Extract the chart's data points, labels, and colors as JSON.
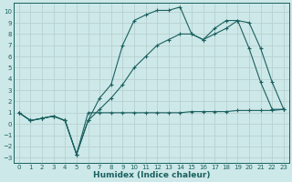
{
  "xlabel": "Humidex (Indice chaleur)",
  "bg_color": "#cde8e8",
  "grid_color": "#b8d0d0",
  "line_color": "#1a6060",
  "xlim": [
    -0.5,
    23.5
  ],
  "ylim": [
    -3.5,
    10.8
  ],
  "xticks": [
    0,
    1,
    2,
    3,
    4,
    5,
    6,
    7,
    8,
    9,
    10,
    11,
    12,
    13,
    14,
    15,
    16,
    17,
    18,
    19,
    20,
    21,
    22,
    23
  ],
  "yticks": [
    -3,
    -2,
    -1,
    0,
    1,
    2,
    3,
    4,
    5,
    6,
    7,
    8,
    9,
    10
  ],
  "line_flat_x": [
    0,
    1,
    2,
    3,
    4,
    5,
    6,
    7,
    8,
    9,
    10,
    11,
    12,
    13,
    14,
    15,
    16,
    17,
    18,
    19,
    20,
    21,
    22,
    23
  ],
  "line_flat_y": [
    1.0,
    0.3,
    0.5,
    0.7,
    0.3,
    -2.7,
    1.0,
    1.0,
    1.0,
    1.0,
    1.0,
    1.0,
    1.0,
    1.0,
    1.0,
    1.1,
    1.1,
    1.1,
    1.1,
    1.2,
    1.2,
    1.2,
    1.2,
    1.3
  ],
  "line_mid_x": [
    0,
    1,
    2,
    3,
    4,
    5,
    6,
    7,
    8,
    9,
    10,
    11,
    12,
    13,
    14,
    15,
    16,
    17,
    18,
    19,
    20,
    21,
    22,
    23
  ],
  "line_mid_y": [
    1.0,
    0.3,
    0.5,
    0.7,
    0.3,
    -2.7,
    0.3,
    1.3,
    2.3,
    3.5,
    5.0,
    6.0,
    7.0,
    7.5,
    8.0,
    8.0,
    7.5,
    8.0,
    8.5,
    9.2,
    9.0,
    6.7,
    3.7,
    1.3
  ],
  "line_top_x": [
    0,
    1,
    2,
    3,
    4,
    5,
    6,
    7,
    8,
    9,
    10,
    11,
    12,
    13,
    14,
    15,
    16,
    17,
    18,
    19,
    20,
    21,
    22,
    23
  ],
  "line_top_y": [
    1.0,
    0.3,
    0.5,
    0.7,
    0.3,
    -2.7,
    0.3,
    2.3,
    3.5,
    7.0,
    9.2,
    9.7,
    10.1,
    10.1,
    10.4,
    8.0,
    7.5,
    8.5,
    9.2,
    9.2,
    6.7,
    3.7,
    1.3,
    1.3
  ]
}
